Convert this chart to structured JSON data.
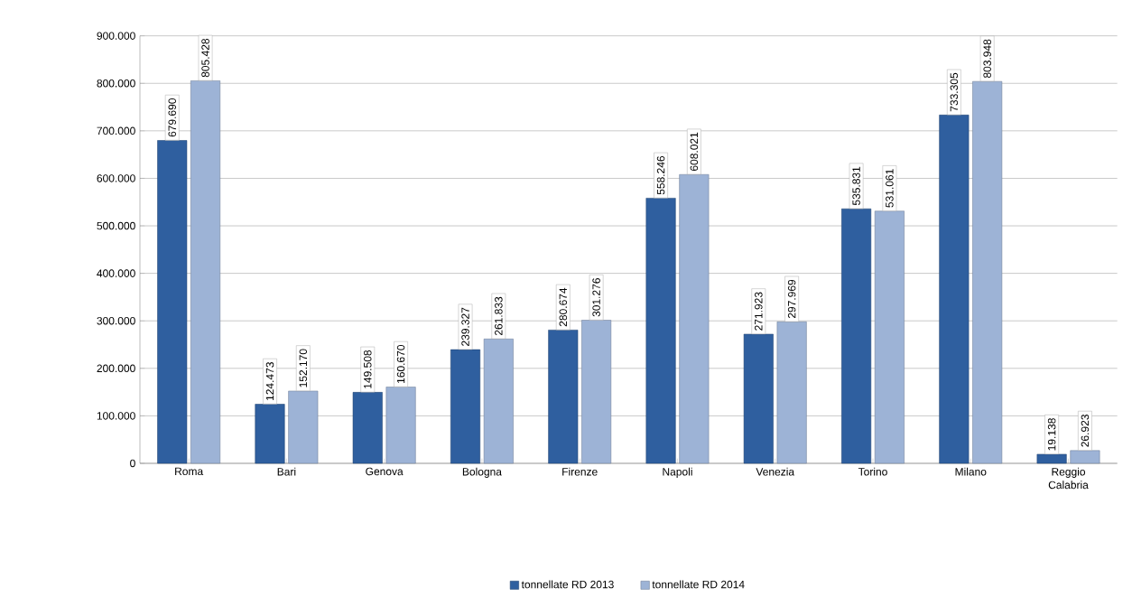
{
  "chart_data": {
    "type": "bar",
    "categories": [
      "Roma",
      "Bari",
      "Genova",
      "Bologna",
      "Firenze",
      "Napoli",
      "Venezia",
      "Torino",
      "Milano",
      "Reggio Calabria"
    ],
    "series": [
      {
        "name": "tonnellate RD 2013",
        "color": "#2f5f9f",
        "values": [
          679690,
          124473,
          149508,
          239327,
          280674,
          558246,
          271923,
          535831,
          733305,
          19138
        ],
        "value_labels": [
          "679.690",
          "124.473",
          "149.508",
          "239.327",
          "280.674",
          "558.246",
          "271.923",
          "535.831",
          "733.305",
          "19.138"
        ]
      },
      {
        "name": "tonnellate RD 2014",
        "color": "#9db3d6",
        "values": [
          805428,
          152170,
          160670,
          261833,
          301276,
          608021,
          297969,
          531061,
          803948,
          26923
        ],
        "value_labels": [
          "805.428",
          "152.170",
          "160.670",
          "261.833",
          "301.276",
          "608.021",
          "297.969",
          "531.061",
          "803.948",
          "26.923"
        ]
      }
    ],
    "ylim": [
      0,
      900000
    ],
    "yticks": [
      0,
      {
        "value": 100000,
        "label": "100.000"
      },
      {
        "value": 200000,
        "label": "200.000"
      },
      {
        "value": 300000,
        "label": "300.000"
      },
      {
        "value": 400000,
        "label": "400.000"
      },
      {
        "value": 500000,
        "label": "500.000"
      },
      {
        "value": 600000,
        "label": "600.000"
      },
      {
        "value": 700000,
        "label": "700.000"
      },
      {
        "value": 800000,
        "label": "800.000"
      },
      {
        "value": 900000,
        "label": "900.000"
      }
    ],
    "grid": "y",
    "legend": "bottom"
  }
}
